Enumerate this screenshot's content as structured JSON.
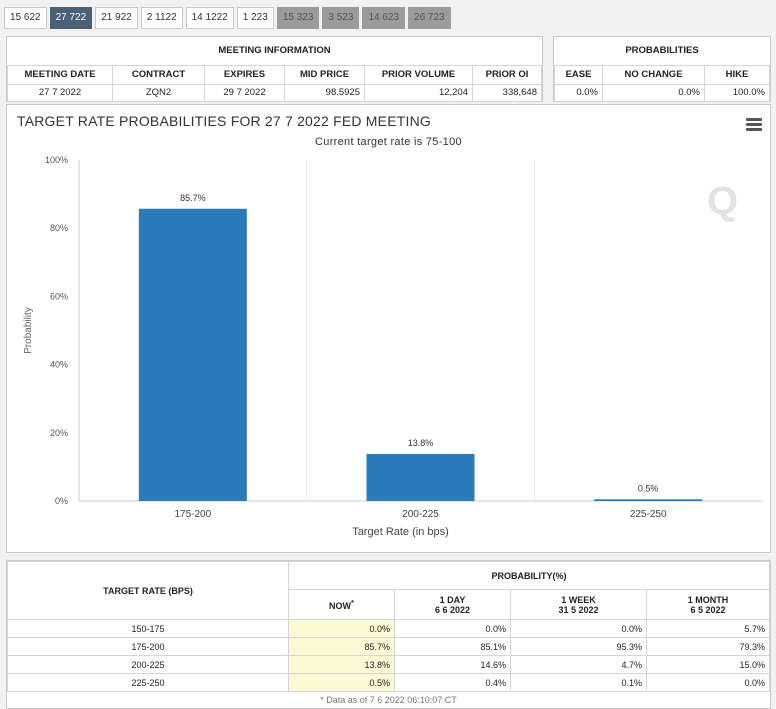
{
  "tabs": [
    "15 622",
    "27 722",
    "21 922",
    "2 1122",
    "14 1222",
    "1 223",
    "15 323",
    "3 523",
    "14 623",
    "26 723"
  ],
  "tab_active_index": 1,
  "meeting_info": {
    "title": "MEETING INFORMATION",
    "columns": [
      "MEETING DATE",
      "CONTRACT",
      "EXPIRES",
      "MID PRICE",
      "PRIOR VOLUME",
      "PRIOR OI"
    ],
    "values": [
      "27 7 2022",
      "ZQN2",
      "29 7 2022",
      "98.5925",
      "12,204",
      "338,648"
    ]
  },
  "probabilities": {
    "title": "PROBABILITIES",
    "columns": [
      "EASE",
      "NO CHANGE",
      "HIKE"
    ],
    "values": [
      "0.0%",
      "0.0%",
      "100.0%"
    ]
  },
  "chart_data": {
    "type": "bar",
    "title": "TARGET RATE PROBABILITIES FOR 27 7 2022 FED MEETING",
    "subtitle": "Current target rate is 75-100",
    "categories": [
      "175-200",
      "200-225",
      "225-250"
    ],
    "values": [
      85.7,
      13.8,
      0.5
    ],
    "data_labels": [
      "85.7%",
      "13.8%",
      "0.5%"
    ],
    "xlabel": "Target Rate (in bps)",
    "ylabel": "Probability",
    "ylim": [
      0,
      100
    ],
    "yticks": [
      "0%",
      "20%",
      "40%",
      "60%",
      "80%",
      "100%"
    ],
    "bar_color": "#2b7bba"
  },
  "bottom_table": {
    "target_header": "TARGET RATE (BPS)",
    "prob_header": "PROBABILITY(%)",
    "now_label": "NOW",
    "now_mark": "*",
    "periods": [
      {
        "label": "1 DAY",
        "date": "6 6 2022"
      },
      {
        "label": "1 WEEK",
        "date": "31 5 2022"
      },
      {
        "label": "1 MONTH",
        "date": "6 5 2022"
      }
    ],
    "rows": [
      {
        "rate": "150-175",
        "now": "0.0%",
        "day": "0.0%",
        "week": "0.0%",
        "month": "5.7%"
      },
      {
        "rate": "175-200",
        "now": "85.7%",
        "day": "85.1%",
        "week": "95.3%",
        "month": "79.3%"
      },
      {
        "rate": "200-225",
        "now": "13.8%",
        "day": "14.6%",
        "week": "4.7%",
        "month": "15.0%"
      },
      {
        "rate": "225-250",
        "now": "0.5%",
        "day": "0.4%",
        "week": "0.1%",
        "month": "0.0%"
      }
    ],
    "footnote": "* Data as of 7 6 2022 06:10:07 CT"
  }
}
